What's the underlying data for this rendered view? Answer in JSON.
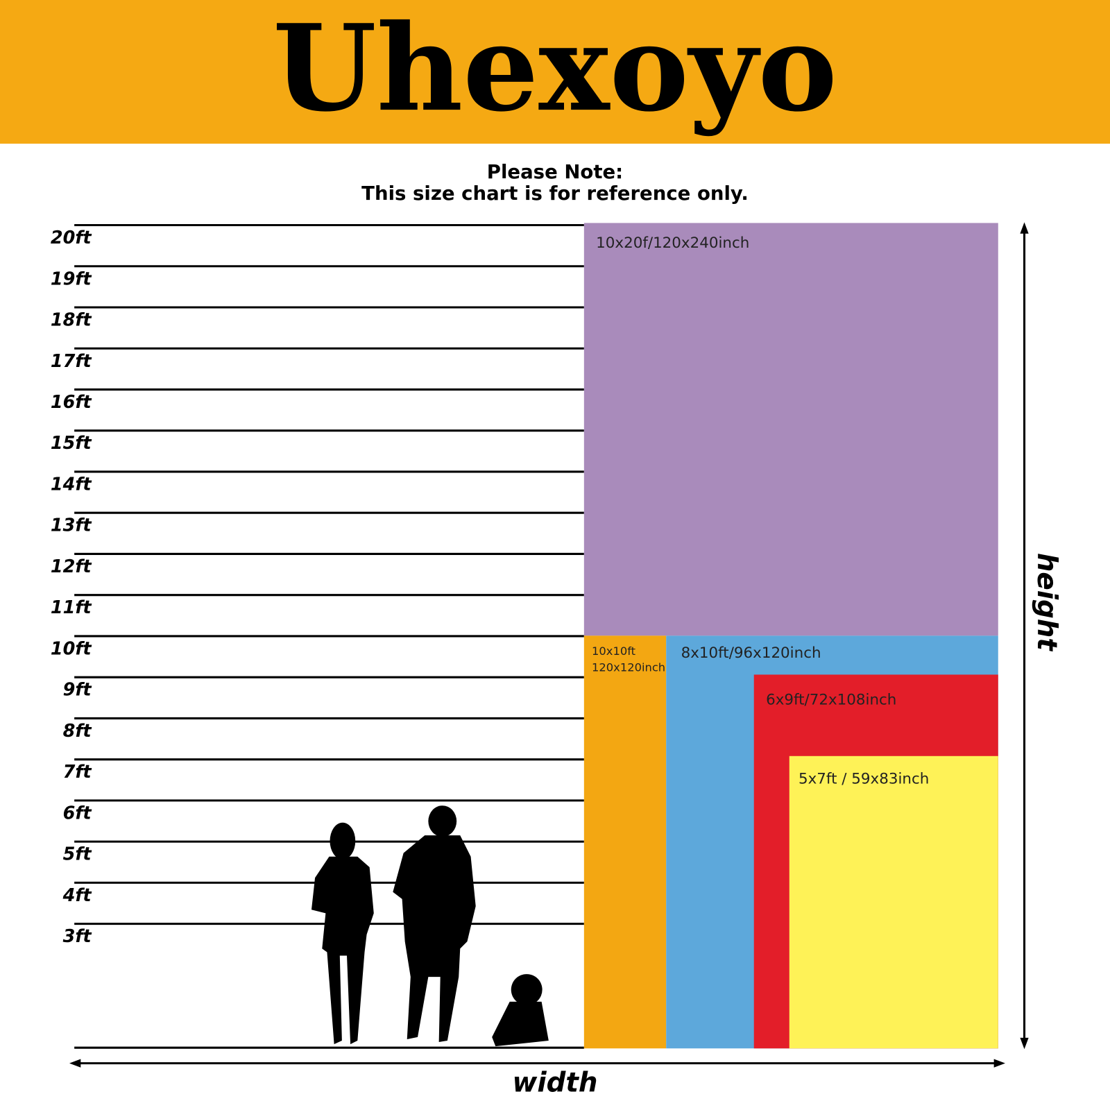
{
  "header": {
    "brand": "Uhexoyo"
  },
  "note": {
    "lines": [
      "Please Note:",
      "This size chart is for reference only."
    ]
  },
  "scale": {
    "labels": [
      "20ft",
      "19ft",
      "18ft",
      "17ft",
      "16ft",
      "15ft",
      "14ft",
      "13ft",
      "12ft",
      "11ft",
      "10ft",
      "9ft",
      "8ft",
      "7ft",
      "6ft",
      "5ft",
      "4ft",
      "3ft"
    ]
  },
  "panels": [
    {
      "label": "10x20f/120x240inch"
    },
    {
      "label_lines": [
        "10x10ft",
        "120x120inch"
      ]
    },
    {
      "label": "8x10ft/96x120inch"
    },
    {
      "label": "6x9ft/72x108inch"
    },
    {
      "label": "5x7ft / 59x83inch"
    }
  ],
  "axes": {
    "height": "height",
    "width": "width"
  }
}
